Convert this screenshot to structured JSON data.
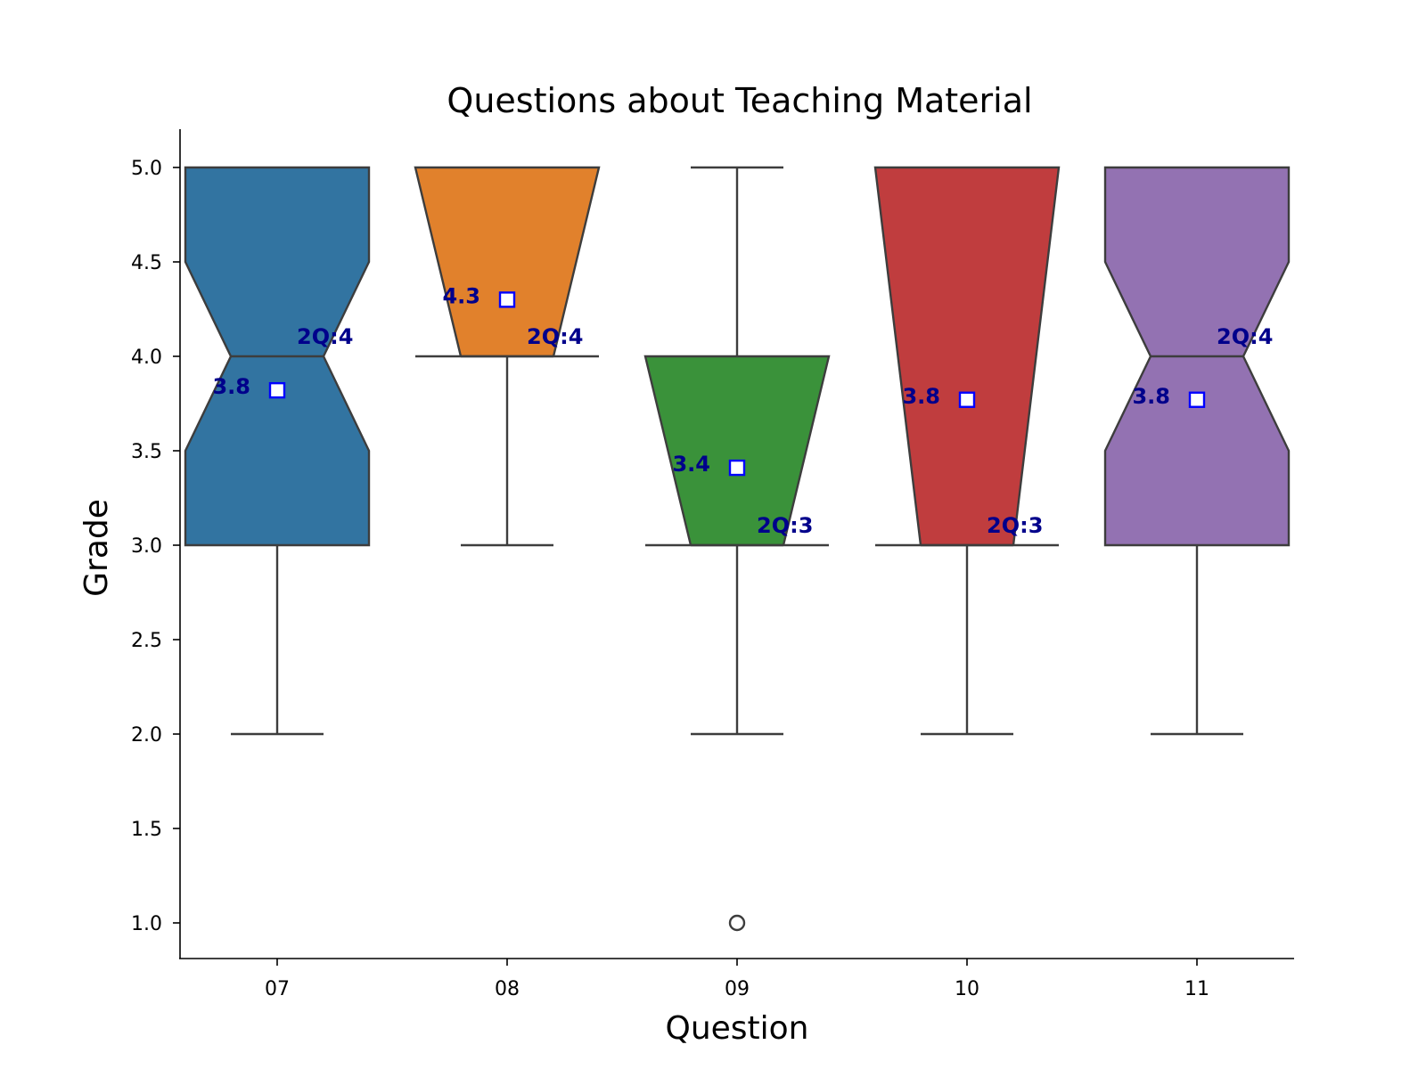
{
  "chart_data": {
    "type": "box",
    "notched": true,
    "title": "Questions about Teaching Material",
    "xlabel": "Question",
    "ylabel": "Grade",
    "ylim": [
      0.8,
      5.2
    ],
    "yticks": [
      "1.0",
      "1.5",
      "2.0",
      "2.5",
      "3.0",
      "3.5",
      "4.0",
      "4.5",
      "5.0"
    ],
    "categories": [
      "07",
      "08",
      "09",
      "10",
      "11"
    ],
    "boxes": [
      {
        "category": "07",
        "color": "#3274a1",
        "whisker_low": 2.0,
        "q1": 3.0,
        "median": 4.0,
        "q3": 5.0,
        "whisker_high": 5.0,
        "mean": 3.82,
        "notch_low": 3.5,
        "notch_high": 4.5,
        "outliers": [],
        "mean_label": "3.8",
        "median_label": "2Q:4"
      },
      {
        "category": "08",
        "color": "#e1812c",
        "whisker_low": 3.0,
        "q1": 4.0,
        "median": 4.0,
        "q3": 5.0,
        "whisker_high": 5.0,
        "mean": 4.3,
        "notch_low": 4.0,
        "notch_high": 5.0,
        "outliers": [],
        "mean_label": "4.3",
        "median_label": "2Q:4"
      },
      {
        "category": "09",
        "color": "#3a923a",
        "whisker_low": 2.0,
        "q1": 3.0,
        "median": 3.0,
        "q3": 4.0,
        "whisker_high": 5.0,
        "mean": 3.41,
        "notch_low": 3.0,
        "notch_high": 4.0,
        "outliers": [
          1.0
        ],
        "mean_label": "3.4",
        "median_label": "2Q:3"
      },
      {
        "category": "10",
        "color": "#c03d3e",
        "whisker_low": 2.0,
        "q1": 3.0,
        "median": 3.0,
        "q3": 5.0,
        "whisker_high": 5.0,
        "mean": 3.77,
        "notch_low": 3.0,
        "notch_high": 5.0,
        "outliers": [],
        "mean_label": "3.8",
        "median_label": "2Q:3"
      },
      {
        "category": "11",
        "color": "#9372b2",
        "whisker_low": 2.0,
        "q1": 3.0,
        "median": 4.0,
        "q3": 5.0,
        "whisker_high": 5.0,
        "mean": 3.77,
        "notch_low": 3.5,
        "notch_high": 4.5,
        "outliers": [],
        "mean_label": "3.8",
        "median_label": "2Q:4"
      }
    ]
  }
}
